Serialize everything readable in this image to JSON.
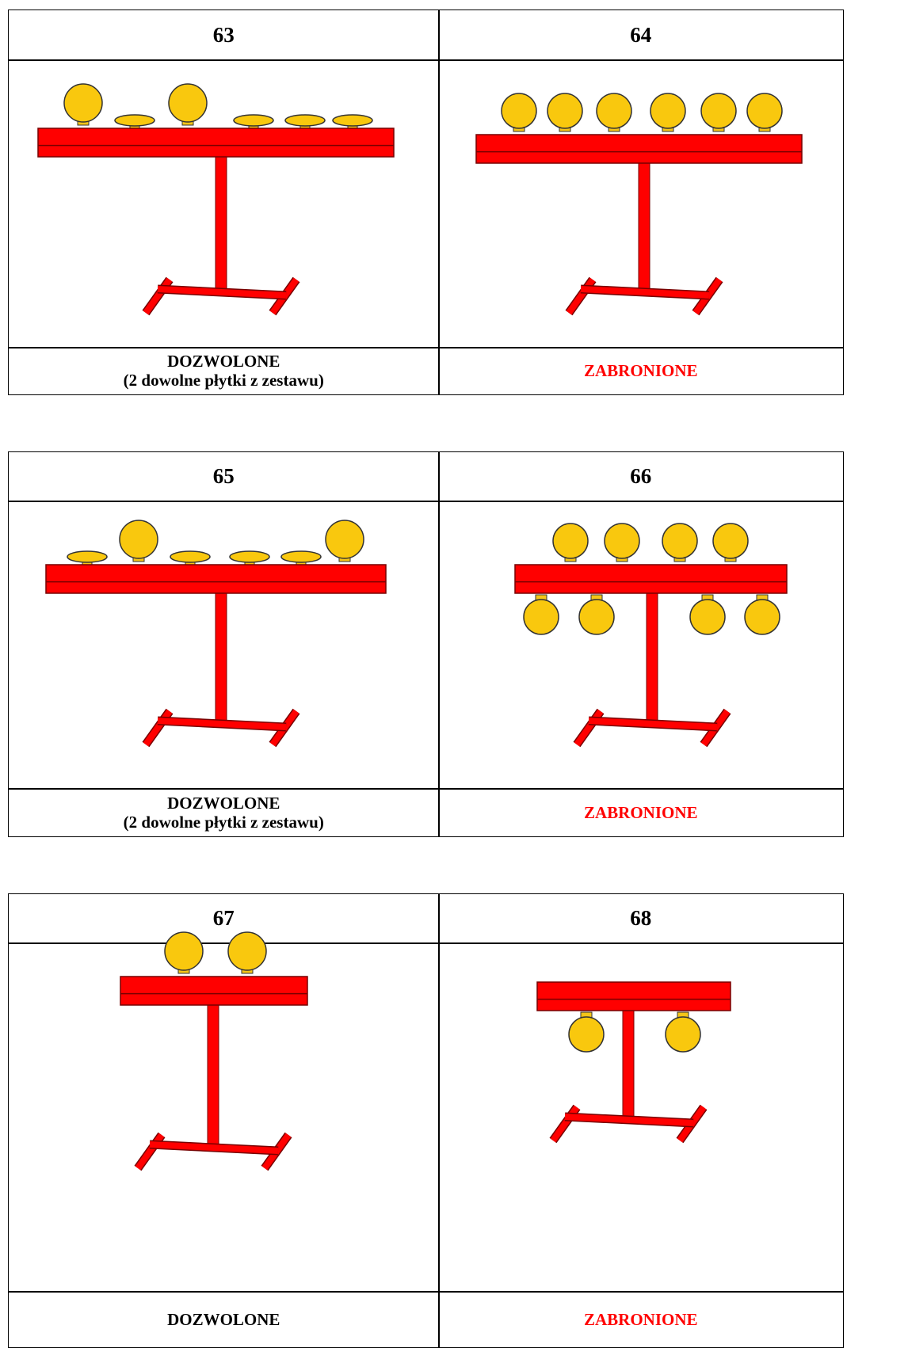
{
  "tables": [
    {
      "headers": [
        "63",
        "64"
      ],
      "footers": [
        [
          "DOZWOLONE",
          "(2 dowolne płytki z zestawu)"
        ],
        [
          "ZABRONIONE"
        ]
      ]
    },
    {
      "headers": [
        "65",
        "66"
      ],
      "footers": [
        [
          "DOZWOLONE",
          "(2 dowolne płytki z zestawu)"
        ],
        [
          "ZABRONIONE"
        ]
      ]
    },
    {
      "headers": [
        "67",
        "68"
      ],
      "footers": [
        [
          "DOZWOLONE"
        ],
        [
          "ZABRONIONE"
        ]
      ]
    }
  ]
}
